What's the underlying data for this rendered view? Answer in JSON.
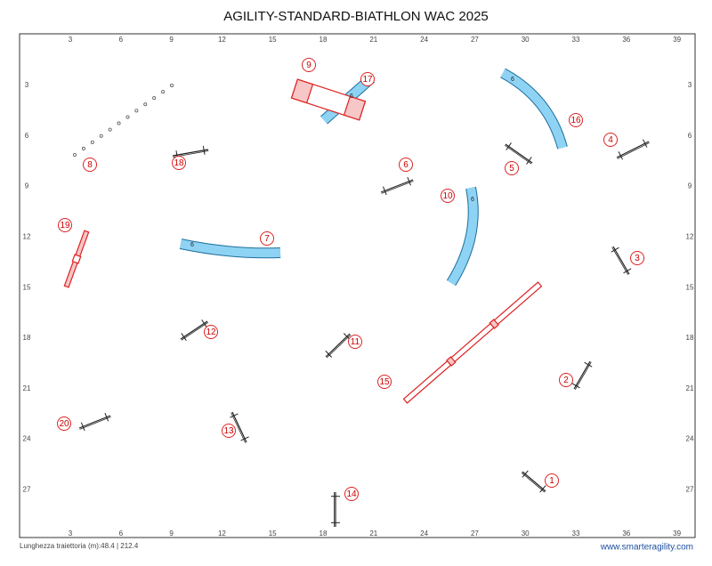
{
  "header": {
    "title": "AGILITY-STANDARD-BIATHLON WAC 2025"
  },
  "grid": {
    "x_labels": [
      3,
      6,
      9,
      12,
      15,
      18,
      21,
      24,
      27,
      30,
      33,
      36,
      39
    ],
    "y_labels": [
      3,
      6,
      9,
      12,
      15,
      18,
      21,
      24,
      27
    ]
  },
  "course_numbers": [
    "1",
    "2",
    "3",
    "4",
    "5",
    "6",
    "7",
    "8",
    "9",
    "10",
    "11",
    "12",
    "13",
    "14",
    "15",
    "16",
    "17",
    "18",
    "19",
    "20"
  ],
  "tunnel_labels": [
    "6",
    "6",
    "6",
    "6"
  ],
  "footer": {
    "path_length": "Lunghezza traiettoria (m):48.4 | 212.4",
    "website": "www.smarteragility.com"
  }
}
